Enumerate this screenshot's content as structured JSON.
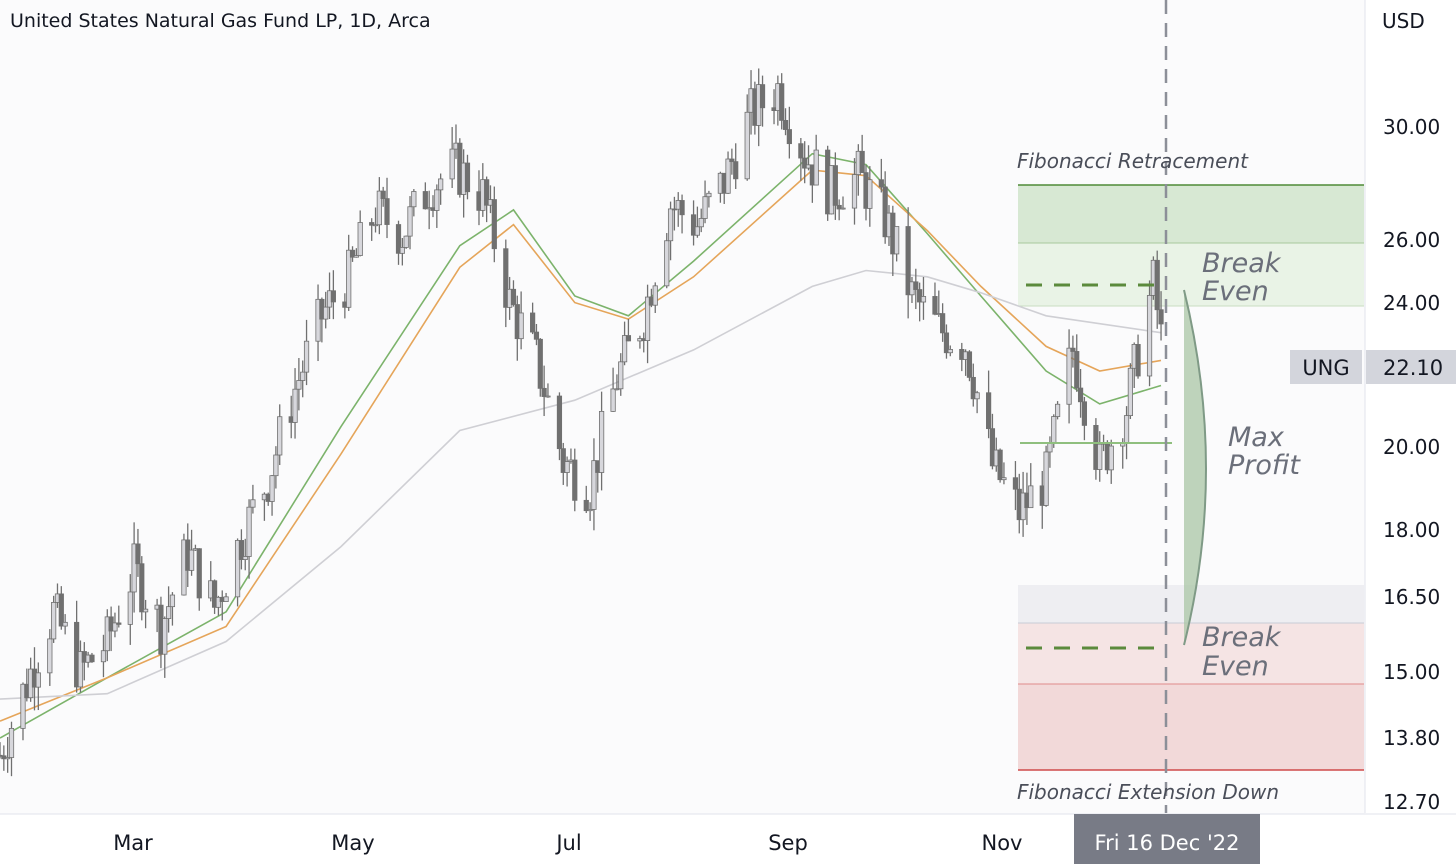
{
  "header": {
    "title": "United States Natural Gas Fund LP, 1D, Arca"
  },
  "price_axis": {
    "currency": "USD",
    "ticks": [
      "30.00",
      "26.00",
      "24.00",
      "20.00",
      "18.00",
      "16.50",
      "15.00",
      "13.80",
      "12.70"
    ]
  },
  "time_axis": {
    "ticks": [
      "Mar",
      "May",
      "Jul",
      "Sep",
      "Nov"
    ],
    "cursor_label": "Fri 16 Dec '22"
  },
  "symbol_badge": {
    "ticker": "UNG",
    "price": "22.10"
  },
  "annotations": {
    "fib_retracement": "Fibonacci Retracement",
    "fib_extension": "Fibonacci Extension Down",
    "break_even_upper": [
      "Break",
      "Even"
    ],
    "break_even_lower": [
      "Break",
      "Even"
    ],
    "max_profit": [
      "Max",
      "Profit"
    ]
  },
  "colors": {
    "candle": "#707070",
    "candle_up": "#d7d7dc",
    "ema_green": "#7cb36b",
    "ema_orange": "#e5a55a",
    "sma_grey": "#cfcfd4",
    "fib_green": "#4e8a36",
    "fib_red": "#d04a4a",
    "dashed": "#5b8a3c"
  },
  "chart_data": {
    "type": "candlestick",
    "title": "United States Natural Gas Fund LP, 1D, Arca",
    "ylabel": "USD",
    "y_scale": "log",
    "ylim": [
      12.3,
      33.5
    ],
    "x_range": [
      "2022-02-01",
      "2022-12-31"
    ],
    "x_ticks": [
      "Mar",
      "May",
      "Jul",
      "Sep",
      "Nov"
    ],
    "last_price": 22.1,
    "series": [
      {
        "name": "UNG",
        "points": [
          [
            "2022-02-01",
            13.5
          ],
          [
            "2022-02-08",
            14.8
          ],
          [
            "2022-02-15",
            16.2
          ],
          [
            "2022-02-22",
            15.0
          ],
          [
            "2022-03-01",
            15.6
          ],
          [
            "2022-03-08",
            17.1
          ],
          [
            "2022-03-15",
            15.9
          ],
          [
            "2022-03-22",
            17.5
          ],
          [
            "2022-03-29",
            16.3
          ],
          [
            "2022-04-05",
            17.8
          ],
          [
            "2022-04-12",
            19.2
          ],
          [
            "2022-04-19",
            21.5
          ],
          [
            "2022-04-26",
            23.6
          ],
          [
            "2022-05-03",
            24.8
          ],
          [
            "2022-05-10",
            27.0
          ],
          [
            "2022-05-17",
            26.2
          ],
          [
            "2022-05-24",
            27.8
          ],
          [
            "2022-05-31",
            28.5
          ],
          [
            "2022-06-07",
            27.5
          ],
          [
            "2022-06-14",
            24.0
          ],
          [
            "2022-06-21",
            22.3
          ],
          [
            "2022-06-28",
            19.6
          ],
          [
            "2022-07-05",
            19.0
          ],
          [
            "2022-07-12",
            21.8
          ],
          [
            "2022-07-19",
            23.6
          ],
          [
            "2022-07-26",
            27.2
          ],
          [
            "2022-08-02",
            26.5
          ],
          [
            "2022-08-09",
            28.0
          ],
          [
            "2022-08-16",
            30.5
          ],
          [
            "2022-08-23",
            31.5
          ],
          [
            "2022-08-30",
            29.0
          ],
          [
            "2022-09-06",
            27.6
          ],
          [
            "2022-09-13",
            28.2
          ],
          [
            "2022-09-20",
            26.7
          ],
          [
            "2022-09-27",
            24.2
          ],
          [
            "2022-10-04",
            23.2
          ],
          [
            "2022-10-11",
            22.8
          ],
          [
            "2022-10-18",
            19.5
          ],
          [
            "2022-10-25",
            18.4
          ],
          [
            "2022-11-01",
            19.2
          ],
          [
            "2022-11-08",
            22.6
          ],
          [
            "2022-11-15",
            19.5
          ],
          [
            "2022-11-22",
            21.0
          ],
          [
            "2022-11-29",
            24.6
          ],
          [
            "2022-12-02",
            22.1
          ]
        ]
      },
      {
        "name": "EMA (green)",
        "points": [
          [
            "2022-02-01",
            13.8
          ],
          [
            "2022-03-01",
            14.9
          ],
          [
            "2022-04-01",
            16.2
          ],
          [
            "2022-05-01",
            20.5
          ],
          [
            "2022-06-01",
            25.8
          ],
          [
            "2022-06-15",
            27.0
          ],
          [
            "2022-07-01",
            24.2
          ],
          [
            "2022-07-15",
            23.6
          ],
          [
            "2022-08-01",
            25.3
          ],
          [
            "2022-09-01",
            29.0
          ],
          [
            "2022-09-15",
            28.6
          ],
          [
            "2022-10-01",
            26.2
          ],
          [
            "2022-10-15",
            24.2
          ],
          [
            "2022-11-01",
            22.0
          ],
          [
            "2022-11-15",
            21.1
          ],
          [
            "2022-12-01",
            21.6
          ]
        ]
      },
      {
        "name": "EMA (orange)",
        "points": [
          [
            "2022-02-01",
            14.1
          ],
          [
            "2022-03-01",
            14.9
          ],
          [
            "2022-04-01",
            15.9
          ],
          [
            "2022-05-01",
            19.8
          ],
          [
            "2022-06-01",
            25.1
          ],
          [
            "2022-06-15",
            26.5
          ],
          [
            "2022-07-01",
            24.0
          ],
          [
            "2022-07-15",
            23.5
          ],
          [
            "2022-08-01",
            24.8
          ],
          [
            "2022-09-01",
            28.4
          ],
          [
            "2022-09-15",
            28.2
          ],
          [
            "2022-10-01",
            26.3
          ],
          [
            "2022-10-15",
            24.5
          ],
          [
            "2022-11-01",
            22.7
          ],
          [
            "2022-11-15",
            22.0
          ],
          [
            "2022-12-01",
            22.3
          ]
        ]
      },
      {
        "name": "SMA (grey)",
        "points": [
          [
            "2022-02-01",
            14.5
          ],
          [
            "2022-03-01",
            14.6
          ],
          [
            "2022-04-01",
            15.6
          ],
          [
            "2022-05-01",
            17.6
          ],
          [
            "2022-06-01",
            20.4
          ],
          [
            "2022-07-01",
            21.2
          ],
          [
            "2022-08-01",
            22.6
          ],
          [
            "2022-09-01",
            24.5
          ],
          [
            "2022-09-15",
            25.0
          ],
          [
            "2022-10-01",
            24.8
          ],
          [
            "2022-10-15",
            24.3
          ],
          [
            "2022-11-01",
            23.6
          ],
          [
            "2022-12-01",
            23.1
          ]
        ]
      }
    ],
    "fibonacci": {
      "zones": [
        {
          "from": 26.0,
          "to": 28.0,
          "color": "green"
        },
        {
          "from": 23.9,
          "to": 26.0,
          "color": "light-green"
        },
        {
          "from": 15.9,
          "to": 16.6,
          "color": "light-grey"
        },
        {
          "from": 14.3,
          "to": 15.9,
          "color": "light-red"
        },
        {
          "from": 12.9,
          "to": 14.3,
          "color": "red"
        }
      ],
      "break_even_upper": 24.6,
      "break_even_lower": 15.3,
      "max_profit_level": 20.0,
      "cursor_date": "2022-12-16"
    }
  }
}
